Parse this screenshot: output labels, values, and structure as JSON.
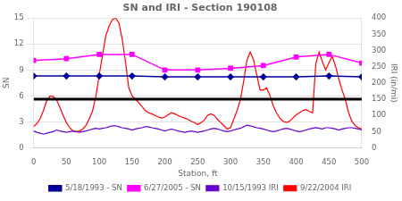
{
  "chart_data": {
    "type": "line",
    "title": "SN and IRI - Section 190108",
    "xlabel": "Station, ft",
    "ylabel": "SN",
    "y2label": "IRI (in/mi)",
    "xlim": [
      0,
      500
    ],
    "xticks": [
      0,
      50,
      100,
      150,
      200,
      250,
      300,
      350,
      400,
      450,
      500
    ],
    "ylim": [
      0,
      15
    ],
    "yticks": [
      0,
      3,
      6,
      9,
      12,
      15
    ],
    "y2lim": [
      0,
      400
    ],
    "y2ticks": [
      0,
      50,
      100,
      150,
      200,
      250,
      300,
      350,
      400
    ],
    "grid": true,
    "legend": "bottom",
    "hline": {
      "value": 150,
      "axis": "y2",
      "color": "#000000"
    },
    "series": [
      {
        "name": "5/18/1993 - SN",
        "color": "#000099",
        "marker": "diamond",
        "axis": "y",
        "x": [
          0,
          50,
          100,
          150,
          200,
          250,
          300,
          350,
          400,
          450,
          500
        ],
        "values": [
          8.3,
          8.3,
          8.3,
          8.3,
          8.2,
          8.2,
          8.2,
          8.2,
          8.2,
          8.3,
          8.2
        ]
      },
      {
        "name": "6/27/2005 - SN",
        "color": "#FF00FF",
        "marker": "square",
        "axis": "y",
        "x": [
          0,
          50,
          100,
          150,
          200,
          250,
          300,
          350,
          400,
          450,
          500
        ],
        "values": [
          10.1,
          10.3,
          10.8,
          10.8,
          9.0,
          9.0,
          9.2,
          9.5,
          10.5,
          10.8,
          9.8
        ]
      },
      {
        "name": "10/15/1993 IRI",
        "color": "#6600CC",
        "marker": "none",
        "axis": "y2",
        "x": [
          0,
          5,
          10,
          15,
          20,
          25,
          30,
          35,
          40,
          45,
          50,
          55,
          60,
          65,
          70,
          75,
          80,
          85,
          90,
          95,
          100,
          105,
          110,
          115,
          120,
          125,
          130,
          135,
          140,
          145,
          150,
          155,
          160,
          165,
          170,
          175,
          180,
          185,
          190,
          195,
          200,
          205,
          210,
          215,
          220,
          225,
          230,
          235,
          240,
          245,
          250,
          255,
          260,
          265,
          270,
          275,
          280,
          285,
          290,
          295,
          300,
          305,
          310,
          315,
          320,
          325,
          330,
          335,
          340,
          345,
          350,
          355,
          360,
          365,
          370,
          375,
          380,
          385,
          390,
          395,
          400,
          405,
          410,
          415,
          420,
          425,
          430,
          435,
          440,
          445,
          450,
          455,
          460,
          465,
          470,
          475,
          480,
          485,
          490,
          495,
          500
        ],
        "values": [
          52,
          48,
          45,
          42,
          45,
          48,
          50,
          55,
          52,
          50,
          48,
          50,
          52,
          50,
          48,
          50,
          52,
          55,
          58,
          60,
          58,
          60,
          62,
          65,
          68,
          68,
          65,
          62,
          60,
          58,
          55,
          58,
          60,
          62,
          65,
          65,
          62,
          60,
          58,
          55,
          52,
          55,
          58,
          55,
          52,
          50,
          48,
          50,
          52,
          50,
          48,
          50,
          52,
          55,
          58,
          60,
          58,
          55,
          52,
          50,
          52,
          55,
          58,
          60,
          65,
          70,
          68,
          65,
          62,
          60,
          58,
          55,
          52,
          50,
          52,
          55,
          58,
          60,
          58,
          55,
          52,
          50,
          52,
          55,
          58,
          60,
          62,
          60,
          58,
          62,
          62,
          60,
          58,
          55,
          58,
          60,
          62,
          62,
          60,
          58,
          55
        ]
      },
      {
        "name": "9/22/2004 IRI",
        "color": "#FF0000",
        "marker": "none",
        "axis": "y2",
        "x": [
          0,
          5,
          10,
          15,
          20,
          25,
          30,
          35,
          40,
          45,
          50,
          55,
          60,
          65,
          70,
          75,
          80,
          85,
          90,
          95,
          100,
          105,
          110,
          115,
          120,
          125,
          130,
          135,
          140,
          145,
          150,
          155,
          160,
          165,
          170,
          175,
          180,
          185,
          190,
          195,
          200,
          205,
          210,
          215,
          220,
          225,
          230,
          235,
          240,
          245,
          250,
          255,
          260,
          265,
          270,
          275,
          280,
          285,
          290,
          295,
          300,
          305,
          310,
          315,
          320,
          325,
          330,
          335,
          340,
          345,
          350,
          355,
          360,
          365,
          370,
          375,
          380,
          385,
          390,
          395,
          400,
          405,
          410,
          415,
          420,
          425,
          430,
          435,
          440,
          445,
          450,
          455,
          460,
          465,
          470,
          475,
          480,
          485,
          490,
          495,
          500
        ],
        "values": [
          65,
          75,
          90,
          115,
          145,
          160,
          158,
          148,
          125,
          100,
          78,
          62,
          52,
          50,
          52,
          58,
          70,
          90,
          115,
          160,
          225,
          285,
          345,
          375,
          395,
          400,
          385,
          335,
          265,
          185,
          160,
          150,
          140,
          128,
          115,
          108,
          105,
          100,
          95,
          92,
          95,
          102,
          108,
          105,
          100,
          95,
          92,
          88,
          82,
          78,
          72,
          78,
          85,
          100,
          105,
          100,
          88,
          78,
          68,
          58,
          62,
          88,
          115,
          148,
          205,
          270,
          295,
          272,
          225,
          178,
          178,
          185,
          162,
          130,
          108,
          92,
          82,
          78,
          82,
          92,
          102,
          108,
          115,
          118,
          112,
          108,
          260,
          295,
          265,
          240,
          262,
          282,
          252,
          212,
          178,
          148,
          108,
          82,
          68,
          62,
          58
        ]
      }
    ]
  }
}
